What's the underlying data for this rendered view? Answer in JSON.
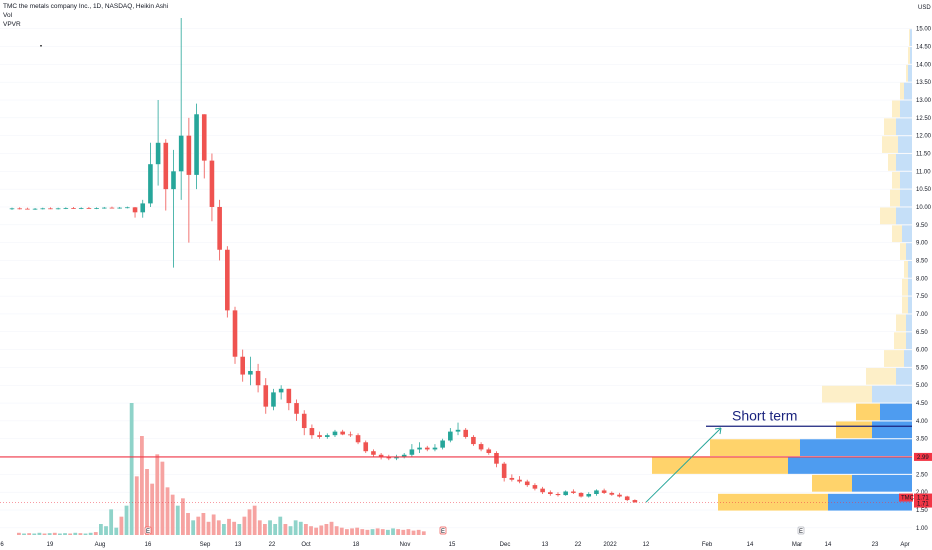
{
  "header": {
    "title_line": "TMC the metals company Inc., 1D, NASDAQ, Heikin Ashi",
    "vol_label": "Vol",
    "vpvr_label": "VPVR"
  },
  "chart_data": {
    "type": "candlestick",
    "symbol": "TMC",
    "interval": "1D",
    "exchange": "NASDAQ",
    "style": "Heikin Ashi",
    "currency_label": "USD",
    "y_ticks": [
      "1.00",
      "1.50",
      "2.00",
      "2.50",
      "3.00",
      "3.50",
      "4.00",
      "4.50",
      "5.00",
      "5.50",
      "6.00",
      "6.50",
      "7.00",
      "7.50",
      "8.00",
      "8.50",
      "9.00",
      "9.50",
      "10.00",
      "10.50",
      "11.00",
      "11.50",
      "12.00",
      "12.50",
      "13.00",
      "13.50",
      "14.00",
      "14.50",
      "15.00"
    ],
    "ylim": [
      0.8,
      15.3
    ],
    "x_ticks": [
      "6",
      "19",
      "Aug",
      "16",
      "Sep",
      "13",
      "22",
      "Oct",
      "18",
      "Nov",
      "15",
      "Dec",
      "13",
      "22",
      "2022",
      "12",
      "Feb",
      "14",
      "Mar",
      "14",
      "23",
      "Apr"
    ],
    "price_badges": [
      {
        "label": "2.99",
        "color": "#f23645"
      },
      {
        "label": "TMC",
        "color": "#f23645"
      },
      {
        "label": "1.71",
        "color": "#f23645"
      },
      {
        "label": "1.71",
        "color": "#f23645"
      }
    ],
    "horizontal_line": {
      "price": 2.99,
      "color": "#f23645"
    },
    "annotation": {
      "text": "Short term",
      "line_price": 3.85,
      "arrow_from_price": 1.72,
      "arrow_to_price": 3.8,
      "color": "#1a237e",
      "arrow_color": "#26a69a"
    },
    "event_markers": [
      "E",
      "E",
      "E"
    ],
    "candles": [
      {
        "o": 9.95,
        "h": 9.98,
        "l": 9.92,
        "c": 9.96
      },
      {
        "o": 9.96,
        "h": 9.99,
        "l": 9.93,
        "c": 9.95
      },
      {
        "o": 9.95,
        "h": 9.98,
        "l": 9.93,
        "c": 9.94
      },
      {
        "o": 9.94,
        "h": 9.97,
        "l": 9.92,
        "c": 9.95
      },
      {
        "o": 9.95,
        "h": 9.98,
        "l": 9.93,
        "c": 9.96
      },
      {
        "o": 9.96,
        "h": 9.99,
        "l": 9.94,
        "c": 9.95
      },
      {
        "o": 9.95,
        "h": 9.98,
        "l": 9.93,
        "c": 9.96
      },
      {
        "o": 9.96,
        "h": 9.99,
        "l": 9.94,
        "c": 9.97
      },
      {
        "o": 9.97,
        "h": 10.0,
        "l": 9.95,
        "c": 9.96
      },
      {
        "o": 9.96,
        "h": 9.99,
        "l": 9.94,
        "c": 9.97
      },
      {
        "o": 9.97,
        "h": 10.0,
        "l": 9.95,
        "c": 9.96
      },
      {
        "o": 9.96,
        "h": 9.99,
        "l": 9.94,
        "c": 9.97
      },
      {
        "o": 9.97,
        "h": 10.0,
        "l": 9.95,
        "c": 9.98
      },
      {
        "o": 9.98,
        "h": 10.01,
        "l": 9.96,
        "c": 9.97
      },
      {
        "o": 9.97,
        "h": 10.0,
        "l": 9.95,
        "c": 9.98
      },
      {
        "o": 9.98,
        "h": 10.01,
        "l": 9.96,
        "c": 9.99
      },
      {
        "o": 9.99,
        "h": 10.0,
        "l": 9.7,
        "c": 9.85
      },
      {
        "o": 9.85,
        "h": 10.2,
        "l": 9.7,
        "c": 10.1
      },
      {
        "o": 10.1,
        "h": 11.8,
        "l": 10.0,
        "c": 11.2
      },
      {
        "o": 11.2,
        "h": 13.0,
        "l": 10.6,
        "c": 11.8
      },
      {
        "o": 11.8,
        "h": 11.9,
        "l": 9.9,
        "c": 10.5
      },
      {
        "o": 10.5,
        "h": 11.6,
        "l": 8.3,
        "c": 11.0
      },
      {
        "o": 11.0,
        "h": 15.3,
        "l": 10.2,
        "c": 12.0
      },
      {
        "o": 12.0,
        "h": 12.5,
        "l": 9.0,
        "c": 10.9
      },
      {
        "o": 10.9,
        "h": 12.9,
        "l": 10.5,
        "c": 12.6
      },
      {
        "o": 12.6,
        "h": 12.6,
        "l": 10.8,
        "c": 11.3
      },
      {
        "o": 11.3,
        "h": 11.5,
        "l": 9.6,
        "c": 10.0
      },
      {
        "o": 10.0,
        "h": 10.2,
        "l": 8.5,
        "c": 8.8
      },
      {
        "o": 8.8,
        "h": 8.9,
        "l": 6.9,
        "c": 7.1
      },
      {
        "o": 7.1,
        "h": 7.2,
        "l": 5.6,
        "c": 5.8
      },
      {
        "o": 5.8,
        "h": 6.0,
        "l": 5.1,
        "c": 5.3
      },
      {
        "o": 5.3,
        "h": 5.8,
        "l": 5.0,
        "c": 5.4
      },
      {
        "o": 5.4,
        "h": 5.6,
        "l": 4.8,
        "c": 5.0
      },
      {
        "o": 5.0,
        "h": 5.2,
        "l": 4.2,
        "c": 4.4
      },
      {
        "o": 4.4,
        "h": 4.9,
        "l": 4.3,
        "c": 4.8
      },
      {
        "o": 4.8,
        "h": 5.0,
        "l": 4.6,
        "c": 4.9
      },
      {
        "o": 4.9,
        "h": 4.9,
        "l": 4.3,
        "c": 4.5
      },
      {
        "o": 4.5,
        "h": 4.6,
        "l": 4.0,
        "c": 4.2
      },
      {
        "o": 4.2,
        "h": 4.3,
        "l": 3.6,
        "c": 3.8
      },
      {
        "o": 3.8,
        "h": 3.9,
        "l": 3.5,
        "c": 3.6
      },
      {
        "o": 3.6,
        "h": 3.7,
        "l": 3.5,
        "c": 3.55
      },
      {
        "o": 3.55,
        "h": 3.65,
        "l": 3.5,
        "c": 3.6
      },
      {
        "o": 3.6,
        "h": 3.75,
        "l": 3.55,
        "c": 3.7
      },
      {
        "o": 3.7,
        "h": 3.75,
        "l": 3.6,
        "c": 3.62
      },
      {
        "o": 3.62,
        "h": 3.7,
        "l": 3.55,
        "c": 3.6
      },
      {
        "o": 3.6,
        "h": 3.65,
        "l": 3.35,
        "c": 3.4
      },
      {
        "o": 3.4,
        "h": 3.45,
        "l": 3.1,
        "c": 3.15
      },
      {
        "o": 3.15,
        "h": 3.2,
        "l": 3.0,
        "c": 3.05
      },
      {
        "o": 3.05,
        "h": 3.1,
        "l": 2.92,
        "c": 2.98
      },
      {
        "o": 2.98,
        "h": 3.05,
        "l": 2.9,
        "c": 2.95
      },
      {
        "o": 2.95,
        "h": 3.05,
        "l": 2.9,
        "c": 3.0
      },
      {
        "o": 3.0,
        "h": 3.1,
        "l": 2.95,
        "c": 3.05
      },
      {
        "o": 3.05,
        "h": 3.35,
        "l": 3.0,
        "c": 3.2
      },
      {
        "o": 3.2,
        "h": 3.4,
        "l": 3.1,
        "c": 3.25
      },
      {
        "o": 3.25,
        "h": 3.3,
        "l": 3.15,
        "c": 3.2
      },
      {
        "o": 3.2,
        "h": 3.35,
        "l": 3.15,
        "c": 3.25
      },
      {
        "o": 3.25,
        "h": 3.5,
        "l": 3.2,
        "c": 3.45
      },
      {
        "o": 3.45,
        "h": 3.8,
        "l": 3.4,
        "c": 3.7
      },
      {
        "o": 3.7,
        "h": 3.95,
        "l": 3.6,
        "c": 3.75
      },
      {
        "o": 3.75,
        "h": 3.8,
        "l": 3.5,
        "c": 3.55
      },
      {
        "o": 3.55,
        "h": 3.6,
        "l": 3.3,
        "c": 3.35
      },
      {
        "o": 3.35,
        "h": 3.4,
        "l": 3.15,
        "c": 3.2
      },
      {
        "o": 3.2,
        "h": 3.25,
        "l": 3.05,
        "c": 3.1
      },
      {
        "o": 3.1,
        "h": 3.15,
        "l": 2.7,
        "c": 2.8
      },
      {
        "o": 2.8,
        "h": 2.85,
        "l": 2.3,
        "c": 2.4
      },
      {
        "o": 2.4,
        "h": 2.5,
        "l": 2.3,
        "c": 2.35
      },
      {
        "o": 2.35,
        "h": 2.45,
        "l": 2.25,
        "c": 2.3
      },
      {
        "o": 2.3,
        "h": 2.35,
        "l": 2.15,
        "c": 2.2
      },
      {
        "o": 2.2,
        "h": 2.25,
        "l": 2.05,
        "c": 2.1
      },
      {
        "o": 2.1,
        "h": 2.15,
        "l": 1.95,
        "c": 2.0
      },
      {
        "o": 2.0,
        "h": 2.05,
        "l": 1.9,
        "c": 1.95
      },
      {
        "o": 1.95,
        "h": 2.0,
        "l": 1.88,
        "c": 1.92
      },
      {
        "o": 1.92,
        "h": 2.05,
        "l": 1.9,
        "c": 2.02
      },
      {
        "o": 2.02,
        "h": 2.08,
        "l": 1.95,
        "c": 1.98
      },
      {
        "o": 1.98,
        "h": 2.0,
        "l": 1.85,
        "c": 1.88
      },
      {
        "o": 1.88,
        "h": 2.0,
        "l": 1.85,
        "c": 1.95
      },
      {
        "o": 1.95,
        "h": 2.08,
        "l": 1.9,
        "c": 2.05
      },
      {
        "o": 2.05,
        "h": 2.1,
        "l": 1.95,
        "c": 1.98
      },
      {
        "o": 1.98,
        "h": 2.02,
        "l": 1.9,
        "c": 1.93
      },
      {
        "o": 1.93,
        "h": 1.98,
        "l": 1.85,
        "c": 1.88
      },
      {
        "o": 1.88,
        "h": 1.9,
        "l": 1.75,
        "c": 1.78
      },
      {
        "o": 1.78,
        "h": 1.8,
        "l": 1.7,
        "c": 1.72
      }
    ],
    "volume_bars": [
      {
        "v": 0.3,
        "up": false
      },
      {
        "v": 0.2,
        "up": true
      },
      {
        "v": 0.25,
        "up": false
      },
      {
        "v": 0.2,
        "up": true
      },
      {
        "v": 0.3,
        "up": true
      },
      {
        "v": 0.2,
        "up": false
      },
      {
        "v": 0.25,
        "up": true
      },
      {
        "v": 0.3,
        "up": false
      },
      {
        "v": 0.2,
        "up": true
      },
      {
        "v": 0.25,
        "up": true
      },
      {
        "v": 0.2,
        "up": false
      },
      {
        "v": 0.3,
        "up": true
      },
      {
        "v": 0.25,
        "up": false
      },
      {
        "v": 0.2,
        "up": true
      },
      {
        "v": 0.3,
        "up": true
      },
      {
        "v": 0.4,
        "up": false
      },
      {
        "v": 1.5,
        "up": true
      },
      {
        "v": 1.2,
        "up": true
      },
      {
        "v": 3.5,
        "up": true
      },
      {
        "v": 1.0,
        "up": true
      },
      {
        "v": 2.5,
        "up": false
      },
      {
        "v": 4.0,
        "up": true
      },
      {
        "v": 18.0,
        "up": true
      },
      {
        "v": 8.0,
        "up": false
      },
      {
        "v": 13.5,
        "up": false
      },
      {
        "v": 9.0,
        "up": false
      },
      {
        "v": 7.0,
        "up": false
      },
      {
        "v": 11.0,
        "up": false
      },
      {
        "v": 10.0,
        "up": false
      },
      {
        "v": 6.5,
        "up": false
      },
      {
        "v": 5.5,
        "up": false
      },
      {
        "v": 4.0,
        "up": true
      },
      {
        "v": 5.0,
        "up": false
      },
      {
        "v": 3.0,
        "up": false
      },
      {
        "v": 2.0,
        "up": true
      },
      {
        "v": 2.5,
        "up": false
      },
      {
        "v": 3.0,
        "up": false
      },
      {
        "v": 1.8,
        "up": false
      },
      {
        "v": 2.8,
        "up": false
      },
      {
        "v": 2.0,
        "up": false
      },
      {
        "v": 1.5,
        "up": true
      },
      {
        "v": 2.2,
        "up": false
      },
      {
        "v": 1.8,
        "up": false
      },
      {
        "v": 1.5,
        "up": true
      },
      {
        "v": 2.5,
        "up": false
      },
      {
        "v": 3.5,
        "up": false
      },
      {
        "v": 4.0,
        "up": false
      },
      {
        "v": 2.0,
        "up": false
      },
      {
        "v": 1.5,
        "up": false
      },
      {
        "v": 2.0,
        "up": true
      },
      {
        "v": 1.5,
        "up": true
      },
      {
        "v": 2.5,
        "up": true
      },
      {
        "v": 1.5,
        "up": false
      },
      {
        "v": 1.2,
        "up": true
      },
      {
        "v": 2.0,
        "up": true
      },
      {
        "v": 1.8,
        "up": true
      },
      {
        "v": 1.5,
        "up": false
      },
      {
        "v": 1.2,
        "up": false
      },
      {
        "v": 1.0,
        "up": false
      },
      {
        "v": 1.3,
        "up": false
      },
      {
        "v": 1.5,
        "up": false
      },
      {
        "v": 1.8,
        "up": false
      },
      {
        "v": 1.2,
        "up": false
      },
      {
        "v": 1.0,
        "up": false
      },
      {
        "v": 0.8,
        "up": false
      },
      {
        "v": 0.9,
        "up": false
      },
      {
        "v": 1.0,
        "up": false
      },
      {
        "v": 0.8,
        "up": false
      },
      {
        "v": 0.7,
        "up": false
      },
      {
        "v": 0.8,
        "up": true
      },
      {
        "v": 0.9,
        "up": false
      },
      {
        "v": 0.8,
        "up": false
      },
      {
        "v": 0.7,
        "up": true
      },
      {
        "v": 0.9,
        "up": true
      },
      {
        "v": 0.8,
        "up": false
      },
      {
        "v": 0.7,
        "up": false
      },
      {
        "v": 0.8,
        "up": false
      },
      {
        "v": 0.6,
        "up": false
      },
      {
        "v": 0.7,
        "up": false
      },
      {
        "v": 0.5,
        "up": false
      }
    ],
    "volume_profile": [
      {
        "price": 1.72,
        "up": 0.55,
        "down": 0.42,
        "up_color": "#ffd36b",
        "down_color": "#4e9cf0"
      },
      {
        "price": 2.25,
        "up": 0.2,
        "down": 0.3,
        "up_color": "#ffd36b",
        "down_color": "#4e9cf0"
      },
      {
        "price": 2.75,
        "up": 0.68,
        "down": 0.62,
        "up_color": "#ffd36b",
        "down_color": "#4e9cf0"
      },
      {
        "price": 3.25,
        "up": 0.45,
        "down": 0.56,
        "up_color": "#ffd36b",
        "down_color": "#4e9cf0"
      },
      {
        "price": 3.75,
        "up": 0.18,
        "down": 0.2,
        "up_color": "#ffd36b",
        "down_color": "#4e9cf0"
      },
      {
        "price": 4.25,
        "up": 0.12,
        "down": 0.16,
        "up_color": "#ffd36b",
        "down_color": "#4e9cf0"
      },
      {
        "price": 4.75,
        "up": 0.25,
        "down": 0.2,
        "up_color": "#fdefc8",
        "down_color": "#c5dff8"
      },
      {
        "price": 5.25,
        "up": 0.15,
        "down": 0.08,
        "up_color": "#fdefc8",
        "down_color": "#c5dff8"
      },
      {
        "price": 5.75,
        "up": 0.1,
        "down": 0.04,
        "up_color": "#fdefc8",
        "down_color": "#c5dff8"
      },
      {
        "price": 6.25,
        "up": 0.06,
        "down": 0.03,
        "up_color": "#fdefc8",
        "down_color": "#c5dff8"
      },
      {
        "price": 6.75,
        "up": 0.05,
        "down": 0.03,
        "up_color": "#fdefc8",
        "down_color": "#c5dff8"
      },
      {
        "price": 7.25,
        "up": 0.03,
        "down": 0.02,
        "up_color": "#fdefc8",
        "down_color": "#c5dff8"
      },
      {
        "price": 7.75,
        "up": 0.03,
        "down": 0.02,
        "up_color": "#fdefc8",
        "down_color": "#c5dff8"
      },
      {
        "price": 8.25,
        "up": 0.02,
        "down": 0.02,
        "up_color": "#fdefc8",
        "down_color": "#c5dff8"
      },
      {
        "price": 8.75,
        "up": 0.03,
        "down": 0.03,
        "up_color": "#fdefc8",
        "down_color": "#c5dff8"
      },
      {
        "price": 9.25,
        "up": 0.05,
        "down": 0.05,
        "up_color": "#fdefc8",
        "down_color": "#c5dff8"
      },
      {
        "price": 9.75,
        "up": 0.08,
        "down": 0.08,
        "up_color": "#fdefc8",
        "down_color": "#c5dff8"
      },
      {
        "price": 10.25,
        "up": 0.05,
        "down": 0.06,
        "up_color": "#fdefc8",
        "down_color": "#c5dff8"
      },
      {
        "price": 10.75,
        "up": 0.04,
        "down": 0.06,
        "up_color": "#fdefc8",
        "down_color": "#c5dff8"
      },
      {
        "price": 11.25,
        "up": 0.04,
        "down": 0.08,
        "up_color": "#fdefc8",
        "down_color": "#c5dff8"
      },
      {
        "price": 11.75,
        "up": 0.08,
        "down": 0.07,
        "up_color": "#fdefc8",
        "down_color": "#c5dff8"
      },
      {
        "price": 12.25,
        "up": 0.06,
        "down": 0.08,
        "up_color": "#fdefc8",
        "down_color": "#c5dff8"
      },
      {
        "price": 12.75,
        "up": 0.04,
        "down": 0.06,
        "up_color": "#fdefc8",
        "down_color": "#c5dff8"
      },
      {
        "price": 13.25,
        "up": 0.02,
        "down": 0.04,
        "up_color": "#fdefc8",
        "down_color": "#c5dff8"
      },
      {
        "price": 13.75,
        "up": 0.01,
        "down": 0.02,
        "up_color": "#fdefc8",
        "down_color": "#c5dff8"
      },
      {
        "price": 14.25,
        "up": 0.01,
        "down": 0.01,
        "up_color": "#fdefc8",
        "down_color": "#c5dff8"
      },
      {
        "price": 14.75,
        "up": 0.005,
        "down": 0.01,
        "up_color": "#fdefc8",
        "down_color": "#c5dff8"
      }
    ],
    "colors": {
      "up": "#26a69a",
      "down": "#ef5350",
      "vol_up": "#8fd3c9",
      "vol_down": "#f6a3a1",
      "grid": "#f0f3fa"
    }
  }
}
